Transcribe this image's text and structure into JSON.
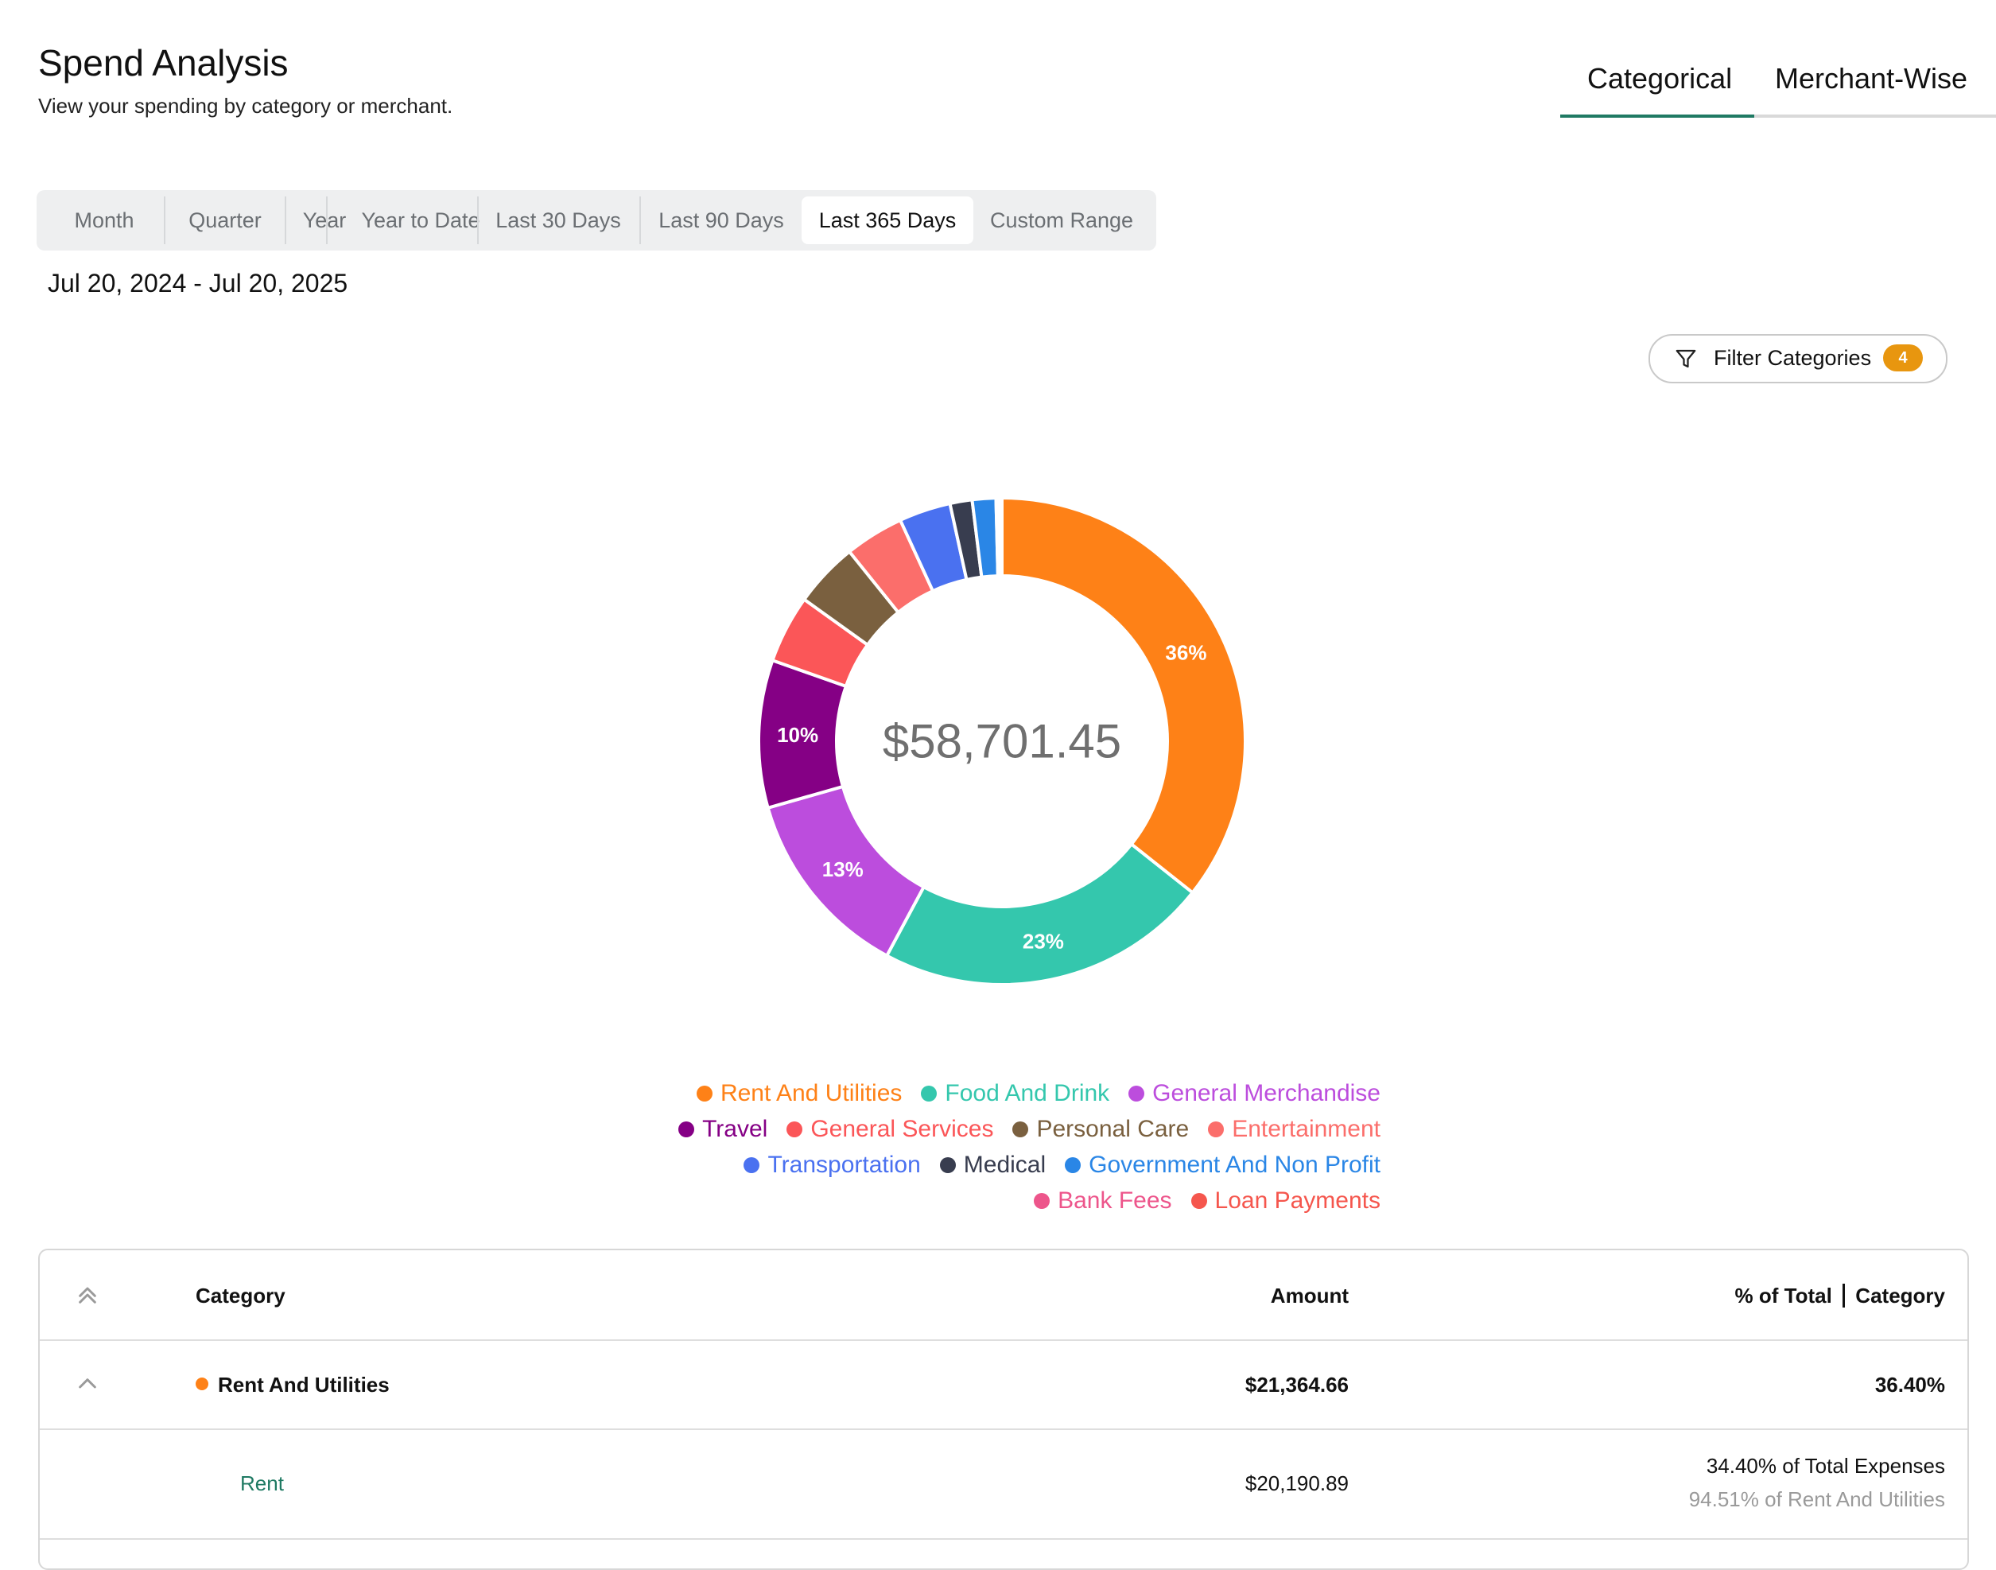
{
  "header": {
    "title": "Spend Analysis",
    "subtitle": "View your spending by category or merchant."
  },
  "view_tabs": [
    {
      "label": "Categorical",
      "active": true
    },
    {
      "label": "Merchant-Wise",
      "active": false
    }
  ],
  "range_options": [
    {
      "label": "Month",
      "active": false
    },
    {
      "label": "Quarter",
      "active": false
    },
    {
      "label": "Year",
      "active": false
    },
    {
      "label": "Year to Date",
      "active": false
    },
    {
      "label": "Last 30 Days",
      "active": false
    },
    {
      "label": "Last 90 Days",
      "active": false
    },
    {
      "label": "Last 365 Days",
      "active": true
    },
    {
      "label": "Custom Range",
      "active": false
    }
  ],
  "date_range": "Jul 20, 2024 - Jul 20, 2025",
  "filter": {
    "label": "Filter Categories",
    "count": "4",
    "icon": "filter-icon"
  },
  "total": "$58,701.45",
  "chart_data": {
    "type": "pie",
    "donut": true,
    "categories": [
      "Rent And Utilities",
      "Food And Drink",
      "General Merchandise",
      "Travel",
      "General Services",
      "Personal Care",
      "Entertainment",
      "Transportation",
      "Medical",
      "Government And Non Profit",
      "Bank Fees",
      "Loan Payments"
    ],
    "values": [
      36.4,
      22.6,
      13.0,
      10.0,
      4.6,
      4.4,
      4.0,
      3.5,
      1.5,
      1.6,
      0.2,
      0.2
    ],
    "colors": [
      "#fe8117",
      "#34c7ad",
      "#bc4ddd",
      "#850085",
      "#fb5658",
      "#7a603f",
      "#fb6e6b",
      "#4a71f0",
      "#383d4f",
      "#2a86e6",
      "#ed558b",
      "#f5564d"
    ],
    "slice_labels": [
      "36%",
      "23%",
      "13%",
      "10%",
      "",
      "",
      "",
      "",
      "",
      "",
      "",
      ""
    ],
    "legend_placement": "bottom"
  },
  "legend_rows": [
    [
      0,
      1,
      2
    ],
    [
      3,
      4,
      5,
      6
    ],
    [
      7,
      8,
      9
    ],
    [
      10,
      11
    ]
  ],
  "table": {
    "headers": {
      "category": "Category",
      "amount": "Amount",
      "percent": "% of Total",
      "percent_suffix": "Category"
    },
    "group": {
      "name": "Rent And Utilities",
      "color": "#fe8117",
      "amount": "$21,364.66",
      "percent": "36.40%"
    },
    "subrow": {
      "name": "Rent",
      "amount": "$20,190.89",
      "percent_total": "34.40% of Total Expenses",
      "percent_category": "94.51% of Rent And Utilities"
    }
  }
}
